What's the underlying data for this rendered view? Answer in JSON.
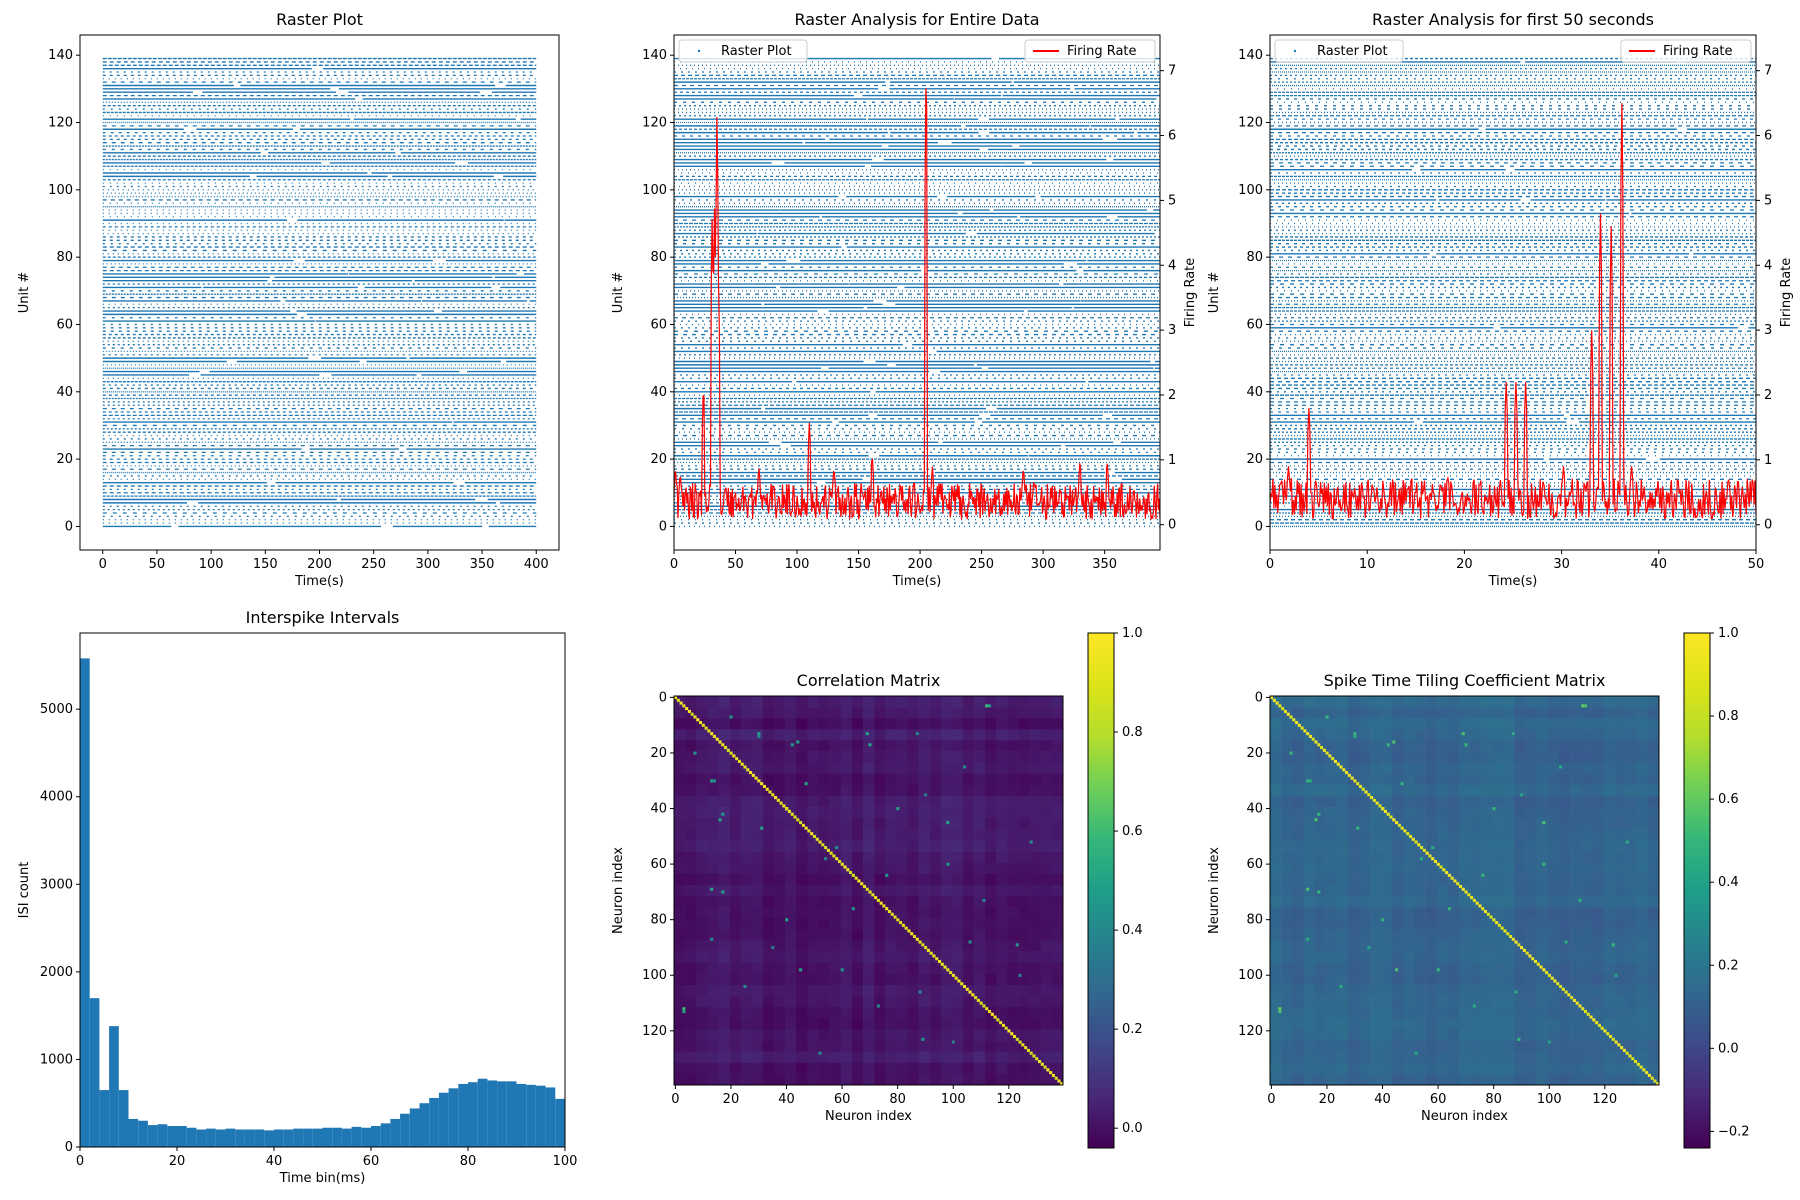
{
  "chart_data": [
    {
      "id": "raster",
      "type": "scatter",
      "title": "Raster Plot",
      "xlabel": "Time(s)",
      "ylabel": "Unit #",
      "xlim": [
        -21,
        421
      ],
      "ylim": [
        -7,
        146
      ],
      "xticks": [
        0,
        50,
        100,
        150,
        200,
        250,
        300,
        350,
        400
      ],
      "yticks": [
        0,
        20,
        40,
        60,
        80,
        100,
        120,
        140
      ],
      "units": [
        0,
        139
      ],
      "time_range": [
        0,
        400
      ],
      "color": "#1f77b4",
      "grid": false
    },
    {
      "id": "raster_full",
      "type": "line",
      "title": "Raster Analysis for Entire Data",
      "xlabel": "Time(s)",
      "ylabel": "Unit #",
      "ylabel_right": "Firing Rate",
      "xlim": [
        0,
        395
      ],
      "ylim": [
        -7,
        146
      ],
      "ylim_right": [
        -0.39,
        7.55
      ],
      "xticks": [
        0,
        50,
        100,
        150,
        200,
        250,
        300,
        350
      ],
      "yticks": [
        0,
        20,
        40,
        60,
        80,
        100,
        120,
        140
      ],
      "yticks_right": [
        0,
        1,
        2,
        3,
        4,
        5,
        6,
        7
      ],
      "legend_left": {
        "label": "Raster Plot",
        "placement": "upper left"
      },
      "legend_right": {
        "label": "Firing Rate",
        "placement": "upper right"
      },
      "series": [
        {
          "name": "Raster Plot",
          "kind": "raster",
          "color": "#1f77b4"
        },
        {
          "name": "Firing Rate",
          "kind": "rate",
          "color": "#ff0000",
          "baseline": 0.4,
          "peaks": [
            [
              1,
              0.9
            ],
            [
              5,
              0.8
            ],
            [
              24,
              2.2
            ],
            [
              31,
              4.8
            ],
            [
              33,
              5.0
            ],
            [
              35,
              6.5
            ],
            [
              36,
              4.0
            ],
            [
              69,
              0.9
            ],
            [
              110,
              1.6
            ],
            [
              130,
              0.9
            ],
            [
              161,
              1.1
            ],
            [
              205,
              7.3
            ],
            [
              210,
              0.9
            ],
            [
              284,
              0.9
            ],
            [
              330,
              1.0
            ],
            [
              352,
              1.0
            ]
          ]
        }
      ]
    },
    {
      "id": "raster_50",
      "type": "line",
      "title": "Raster Analysis for first 50 seconds",
      "xlabel": "Time(s)",
      "ylabel": "Unit #",
      "ylabel_right": "Firing Rate",
      "xlim": [
        0,
        50
      ],
      "ylim": [
        -7,
        146
      ],
      "ylim_right": [
        -0.39,
        7.55
      ],
      "xticks": [
        0,
        10,
        20,
        30,
        40,
        50
      ],
      "yticks": [
        0,
        20,
        40,
        60,
        80,
        100,
        120,
        140
      ],
      "yticks_right": [
        0,
        1,
        2,
        3,
        4,
        5,
        6,
        7
      ],
      "legend_left": {
        "label": "Raster Plot",
        "placement": "upper left"
      },
      "legend_right": {
        "label": "Firing Rate",
        "placement": "upper right"
      },
      "series": [
        {
          "name": "Raster Plot",
          "kind": "raster",
          "color": "#1f77b4"
        },
        {
          "name": "Firing Rate",
          "kind": "rate",
          "color": "#ff0000",
          "baseline": 0.45,
          "peaks": [
            [
              1.9,
              0.9
            ],
            [
              4.0,
              1.8
            ],
            [
              24.3,
              2.2
            ],
            [
              25.3,
              2.2
            ],
            [
              26.3,
              2.2
            ],
            [
              30.2,
              0.9
            ],
            [
              33.1,
              3.0
            ],
            [
              34.0,
              4.8
            ],
            [
              35.1,
              4.6
            ],
            [
              36.2,
              6.5
            ],
            [
              37.2,
              0.9
            ]
          ]
        }
      ]
    },
    {
      "id": "isi",
      "type": "bar",
      "title": "Interspike Intervals",
      "xlabel": "Time bin(ms)",
      "ylabel": "ISI count",
      "xlim": [
        0,
        100
      ],
      "ylim": [
        0,
        5870
      ],
      "xticks": [
        0,
        20,
        40,
        60,
        80,
        100
      ],
      "yticks": [
        0,
        1000,
        2000,
        3000,
        4000,
        5000
      ],
      "bin_width": 2,
      "bin_starts": [
        0,
        2,
        4,
        6,
        8,
        10,
        12,
        14,
        16,
        18,
        20,
        22,
        24,
        26,
        28,
        30,
        32,
        34,
        36,
        38,
        40,
        42,
        44,
        46,
        48,
        50,
        52,
        54,
        56,
        58,
        60,
        62,
        64,
        66,
        68,
        70,
        72,
        74,
        76,
        78,
        80,
        82,
        84,
        86,
        88,
        90,
        92,
        94,
        96,
        98
      ],
      "values": [
        5580,
        1700,
        650,
        1380,
        650,
        320,
        300,
        250,
        260,
        240,
        240,
        220,
        200,
        210,
        200,
        210,
        200,
        200,
        200,
        190,
        200,
        200,
        210,
        210,
        210,
        220,
        220,
        210,
        230,
        220,
        240,
        270,
        320,
        380,
        440,
        500,
        560,
        620,
        670,
        720,
        740,
        780,
        760,
        750,
        750,
        720,
        710,
        700,
        680,
        550
      ],
      "color": "#1f77b4"
    },
    {
      "id": "corr",
      "type": "heatmap",
      "title": "Correlation Matrix",
      "xlabel": "Neuron index",
      "ylabel": "Neuron index",
      "size": 140,
      "xticks": [
        0,
        20,
        40,
        60,
        80,
        100,
        120
      ],
      "yticks": [
        0,
        20,
        40,
        60,
        80,
        100,
        120
      ],
      "vmin": -0.04,
      "vmax": 1.0,
      "colorbar_ticks": [
        0.0,
        0.2,
        0.4,
        0.6,
        0.8,
        1.0
      ],
      "colorbar_labels": [
        "0.0",
        "0.2",
        "0.4",
        "0.6",
        "0.8",
        "1.0"
      ],
      "diagonal": 1.0,
      "background": 0.02,
      "hot_pairs": [
        [
          3,
          112,
          0.6
        ],
        [
          13,
          30,
          0.5
        ],
        [
          20,
          7,
          0.45
        ],
        [
          16,
          44,
          0.5
        ],
        [
          40,
          40,
          1.0
        ],
        [
          42,
          17,
          0.45
        ],
        [
          47,
          31,
          0.5
        ],
        [
          30,
          14,
          0.4
        ],
        [
          58,
          54,
          0.4
        ],
        [
          64,
          76,
          0.45
        ],
        [
          69,
          13,
          0.5
        ],
        [
          80,
          40,
          0.5
        ],
        [
          87,
          13,
          0.4
        ],
        [
          98,
          45,
          0.5
        ],
        [
          104,
          25,
          0.4
        ],
        [
          113,
          3,
          0.5
        ],
        [
          123,
          89,
          0.45
        ],
        [
          128,
          52,
          0.4
        ],
        [
          111,
          73,
          0.4
        ],
        [
          60,
          98,
          0.45
        ],
        [
          17,
          70,
          0.5
        ],
        [
          88,
          106,
          0.4
        ],
        [
          35,
          90,
          0.35
        ],
        [
          100,
          124,
          0.35
        ]
      ]
    },
    {
      "id": "sttc",
      "type": "heatmap",
      "title": "Spike Time Tiling Coefficient Matrix",
      "xlabel": "Neuron index",
      "ylabel": "Neuron index",
      "size": 140,
      "xticks": [
        0,
        20,
        40,
        60,
        80,
        100,
        120
      ],
      "yticks": [
        0,
        20,
        40,
        60,
        80,
        100,
        120
      ],
      "vmin": -0.24,
      "vmax": 1.0,
      "colorbar_ticks": [
        -0.2,
        0.0,
        0.2,
        0.4,
        0.6,
        0.8,
        1.0
      ],
      "colorbar_labels": [
        "−0.2",
        "0.0",
        "0.2",
        "0.4",
        "0.6",
        "0.8",
        "1.0"
      ],
      "diagonal": 1.0,
      "background": 0.12,
      "hot_pairs": [
        [
          3,
          112,
          0.6
        ],
        [
          13,
          30,
          0.5
        ],
        [
          20,
          7,
          0.5
        ],
        [
          16,
          44,
          0.55
        ],
        [
          40,
          40,
          1.0
        ],
        [
          42,
          17,
          0.5
        ],
        [
          47,
          31,
          0.5
        ],
        [
          30,
          14,
          0.45
        ],
        [
          58,
          54,
          0.45
        ],
        [
          64,
          76,
          0.5
        ],
        [
          69,
          13,
          0.55
        ],
        [
          80,
          40,
          0.5
        ],
        [
          87,
          13,
          0.45
        ],
        [
          98,
          45,
          0.55
        ],
        [
          104,
          25,
          0.45
        ],
        [
          113,
          3,
          0.55
        ],
        [
          123,
          89,
          0.5
        ],
        [
          128,
          52,
          0.45
        ],
        [
          111,
          73,
          0.45
        ],
        [
          60,
          98,
          0.5
        ],
        [
          17,
          70,
          0.5
        ],
        [
          88,
          106,
          0.45
        ],
        [
          35,
          90,
          0.4
        ],
        [
          100,
          124,
          0.4
        ]
      ]
    }
  ]
}
